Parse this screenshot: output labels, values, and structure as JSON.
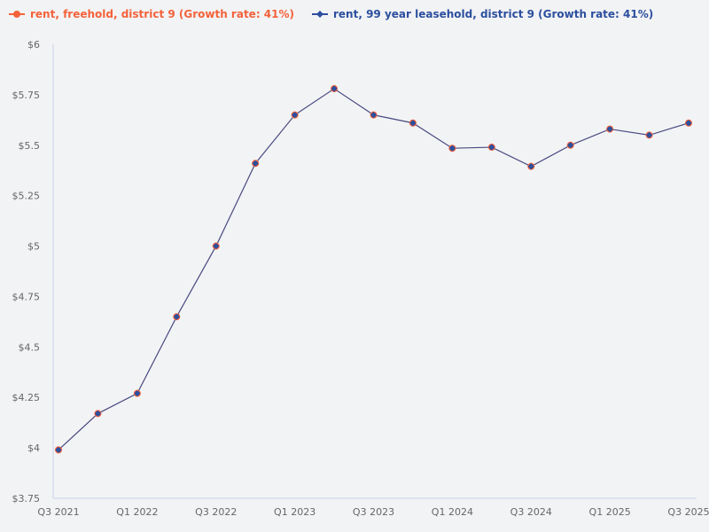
{
  "colors": {
    "series1": "#f4623a",
    "series2": "#2c4f9e",
    "line": "#4a4a80",
    "axis": "#c8d3e6",
    "tick_text": "#666666",
    "background": "#f2f3f5"
  },
  "legend": {
    "items": [
      {
        "label": "rent, freehold, district 9 (Growth rate: 41%)",
        "color": "#f4623a",
        "marker": "circle"
      },
      {
        "label": "rent, 99 year leasehold, district 9 (Growth rate: 41%)",
        "color": "#2c4f9e",
        "marker": "diamond"
      }
    ]
  },
  "chart_data": {
    "type": "line",
    "title": "",
    "xlabel": "",
    "ylabel": "",
    "ylim": [
      3.75,
      6
    ],
    "yticks": [
      "$3.75",
      "$4",
      "$4.25",
      "$4.5",
      "$4.75",
      "$5",
      "$5.25",
      "$5.5",
      "$5.75",
      "$6"
    ],
    "ytick_values": [
      3.75,
      4,
      4.25,
      4.5,
      4.75,
      5,
      5.25,
      5.5,
      5.75,
      6
    ],
    "xticks": [
      "Q3 2021",
      "Q1 2022",
      "Q3 2022",
      "Q1 2023",
      "Q3 2023",
      "Q1 2024",
      "Q3 2024",
      "Q1 2025",
      "Q3 2025"
    ],
    "x": [
      "Q3 2021",
      "Q4 2021",
      "Q1 2022",
      "Q2 2022",
      "Q3 2022",
      "Q4 2022",
      "Q1 2023",
      "Q2 2023",
      "Q3 2023",
      "Q4 2023",
      "Q1 2024",
      "Q2 2024",
      "Q3 2024",
      "Q4 2024",
      "Q1 2025",
      "Q2 2025",
      "Q3 2025"
    ],
    "series": [
      {
        "name": "rent, freehold, district 9 (Growth rate: 41%)",
        "values": [
          3.99,
          4.17,
          4.27,
          4.65,
          5.0,
          5.41,
          5.65,
          5.78,
          5.65,
          5.61,
          5.485,
          5.49,
          5.395,
          5.5,
          5.58,
          5.55,
          5.61
        ]
      },
      {
        "name": "rent, 99 year leasehold, district 9 (Growth rate: 41%)",
        "values": [
          3.99,
          4.17,
          4.27,
          4.65,
          5.0,
          5.41,
          5.65,
          5.78,
          5.65,
          5.61,
          5.485,
          5.49,
          5.395,
          5.5,
          5.58,
          5.55,
          5.61
        ]
      }
    ],
    "grid": false,
    "legend_position": "top-left"
  }
}
